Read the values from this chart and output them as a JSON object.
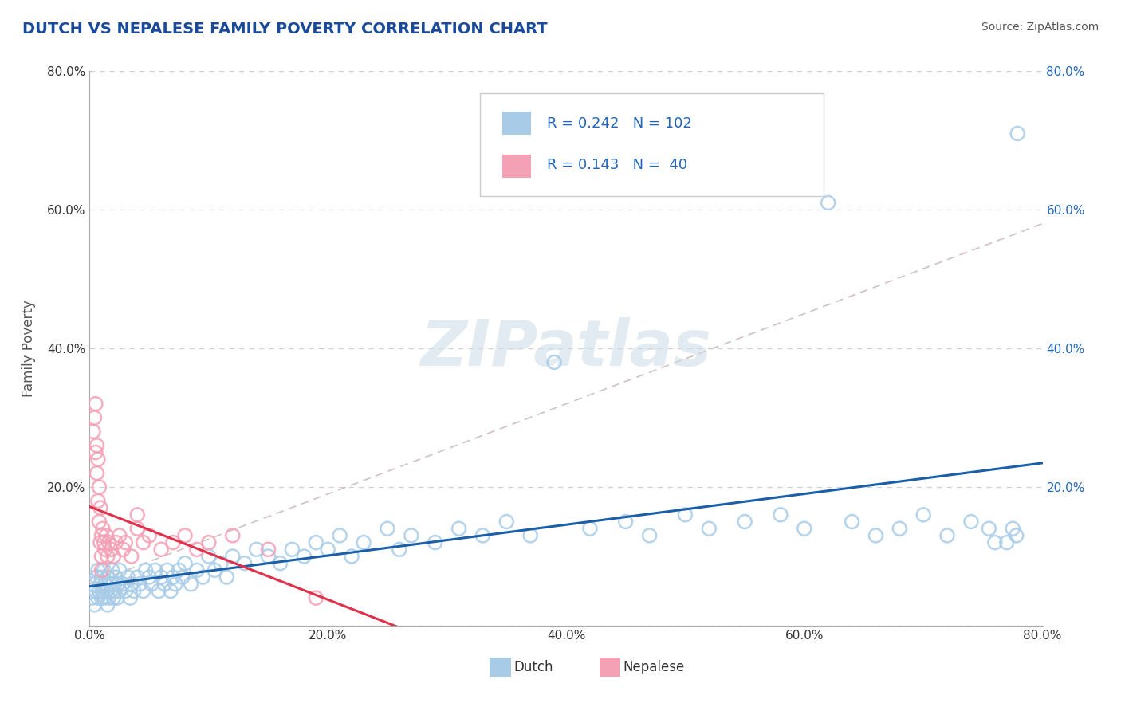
{
  "title": "DUTCH VS NEPALESE FAMILY POVERTY CORRELATION CHART",
  "source": "Source: ZipAtlas.com",
  "ylabel": "Family Poverty",
  "xlim": [
    0,
    0.8
  ],
  "ylim": [
    0,
    0.8
  ],
  "xticks": [
    0.0,
    0.2,
    0.4,
    0.6,
    0.8
  ],
  "yticks": [
    0.0,
    0.2,
    0.4,
    0.6,
    0.8
  ],
  "xtick_labels": [
    "0.0%",
    "20.0%",
    "40.0%",
    "60.0%",
    "80.0%"
  ],
  "ytick_labels": [
    "",
    "20.0%",
    "40.0%",
    "60.0%",
    "80.0%"
  ],
  "dutch_R": 0.242,
  "dutch_N": 102,
  "nepalese_R": 0.143,
  "nepalese_N": 40,
  "dutch_color": "#a8cce8",
  "nepalese_color": "#f4a0b5",
  "dutch_edge_color": "#7ab0d4",
  "nepalese_edge_color": "#e87090",
  "dutch_line_color": "#1a5fa8",
  "nepalese_line_color": "#e0304a",
  "ref_line_color": "#ccbbbb",
  "background_color": "#ffffff",
  "grid_color": "#bbbbbb",
  "title_color": "#1a4a9a",
  "source_color": "#555555",
  "ylabel_color": "#555555",
  "watermark_color": "#ccdce8",
  "right_tick_color": "#2266bb",
  "legend_label_color": "#2266bb",
  "bottom_legend_color": "#333333",
  "dutch_x": [
    0.002,
    0.003,
    0.004,
    0.005,
    0.006,
    0.007,
    0.007,
    0.008,
    0.009,
    0.01,
    0.01,
    0.011,
    0.012,
    0.012,
    0.013,
    0.014,
    0.015,
    0.015,
    0.016,
    0.017,
    0.018,
    0.019,
    0.02,
    0.02,
    0.021,
    0.022,
    0.023,
    0.024,
    0.025,
    0.025,
    0.028,
    0.03,
    0.032,
    0.034,
    0.035,
    0.037,
    0.04,
    0.042,
    0.045,
    0.047,
    0.05,
    0.052,
    0.055,
    0.058,
    0.06,
    0.063,
    0.065,
    0.068,
    0.07,
    0.072,
    0.075,
    0.078,
    0.08,
    0.085,
    0.09,
    0.095,
    0.1,
    0.105,
    0.11,
    0.115,
    0.12,
    0.13,
    0.14,
    0.15,
    0.16,
    0.17,
    0.18,
    0.19,
    0.2,
    0.21,
    0.22,
    0.23,
    0.25,
    0.26,
    0.27,
    0.29,
    0.31,
    0.33,
    0.35,
    0.37,
    0.39,
    0.42,
    0.45,
    0.47,
    0.5,
    0.52,
    0.55,
    0.58,
    0.6,
    0.62,
    0.64,
    0.66,
    0.68,
    0.7,
    0.72,
    0.74,
    0.755,
    0.76,
    0.77,
    0.775,
    0.778,
    0.779
  ],
  "dutch_y": [
    0.04,
    0.06,
    0.03,
    0.05,
    0.07,
    0.04,
    0.08,
    0.05,
    0.06,
    0.04,
    0.07,
    0.05,
    0.08,
    0.04,
    0.06,
    0.05,
    0.03,
    0.07,
    0.04,
    0.06,
    0.05,
    0.08,
    0.04,
    0.06,
    0.05,
    0.07,
    0.04,
    0.06,
    0.05,
    0.08,
    0.06,
    0.05,
    0.07,
    0.04,
    0.06,
    0.05,
    0.07,
    0.06,
    0.05,
    0.08,
    0.07,
    0.06,
    0.08,
    0.05,
    0.07,
    0.06,
    0.08,
    0.05,
    0.07,
    0.06,
    0.08,
    0.07,
    0.09,
    0.06,
    0.08,
    0.07,
    0.1,
    0.08,
    0.09,
    0.07,
    0.1,
    0.09,
    0.11,
    0.1,
    0.09,
    0.11,
    0.1,
    0.12,
    0.11,
    0.13,
    0.1,
    0.12,
    0.14,
    0.11,
    0.13,
    0.12,
    0.14,
    0.13,
    0.15,
    0.13,
    0.38,
    0.14,
    0.15,
    0.13,
    0.16,
    0.14,
    0.15,
    0.16,
    0.14,
    0.61,
    0.15,
    0.13,
    0.14,
    0.16,
    0.13,
    0.15,
    0.14,
    0.12,
    0.12,
    0.14,
    0.13,
    0.71
  ],
  "nepalese_x": [
    0.003,
    0.004,
    0.005,
    0.005,
    0.006,
    0.006,
    0.007,
    0.007,
    0.008,
    0.008,
    0.009,
    0.009,
    0.01,
    0.01,
    0.01,
    0.011,
    0.012,
    0.013,
    0.014,
    0.015,
    0.016,
    0.018,
    0.02,
    0.022,
    0.025,
    0.028,
    0.03,
    0.035,
    0.04,
    0.045,
    0.05,
    0.06,
    0.07,
    0.08,
    0.09,
    0.1,
    0.12,
    0.15,
    0.19,
    0.04
  ],
  "nepalese_y": [
    0.28,
    0.3,
    0.25,
    0.32,
    0.22,
    0.26,
    0.18,
    0.24,
    0.15,
    0.2,
    0.12,
    0.17,
    0.1,
    0.13,
    0.08,
    0.14,
    0.12,
    0.11,
    0.13,
    0.1,
    0.12,
    0.11,
    0.1,
    0.12,
    0.13,
    0.11,
    0.12,
    0.1,
    0.14,
    0.12,
    0.13,
    0.11,
    0.12,
    0.13,
    0.11,
    0.12,
    0.13,
    0.11,
    0.04,
    0.16
  ],
  "ref_line_x": [
    0.0,
    0.8
  ],
  "ref_line_y": [
    0.06,
    0.58
  ]
}
